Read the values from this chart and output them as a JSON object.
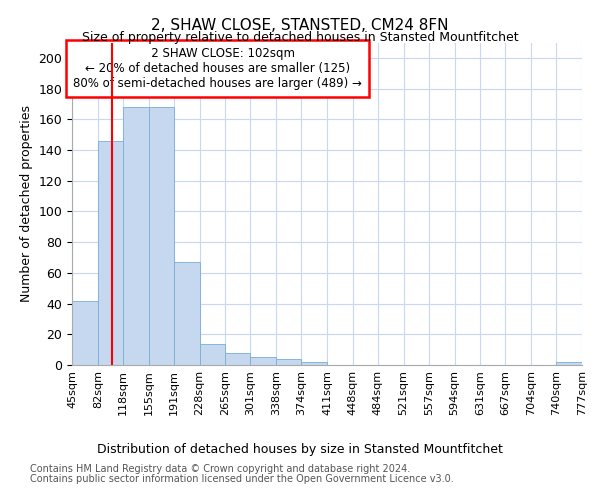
{
  "title": "2, SHAW CLOSE, STANSTED, CM24 8FN",
  "subtitle": "Size of property relative to detached houses in Stansted Mountfitchet",
  "xlabel": "Distribution of detached houses by size in Stansted Mountfitchet",
  "ylabel": "Number of detached properties",
  "footnote1": "Contains HM Land Registry data © Crown copyright and database right 2024.",
  "footnote2": "Contains public sector information licensed under the Open Government Licence v3.0.",
  "annotation_line1": "2 SHAW CLOSE: 102sqm",
  "annotation_line2": "← 20% of detached houses are smaller (125)",
  "annotation_line3": "80% of semi-detached houses are larger (489) →",
  "bar_edges": [
    45,
    82,
    118,
    155,
    191,
    228,
    265,
    301,
    338,
    374,
    411,
    448,
    484,
    521,
    557,
    594,
    631,
    667,
    704,
    740,
    777
  ],
  "bar_heights": [
    42,
    146,
    168,
    168,
    67,
    14,
    8,
    5,
    4,
    2,
    0,
    0,
    0,
    0,
    0,
    0,
    0,
    0,
    0,
    2
  ],
  "bar_color": "#c5d8ef",
  "bar_edge_color": "#7aadd4",
  "red_line_x": 102,
  "ylim": [
    0,
    210
  ],
  "yticks": [
    0,
    20,
    40,
    60,
    80,
    100,
    120,
    140,
    160,
    180,
    200
  ],
  "background_color": "#ffffff",
  "grid_color": "#c8d8ee"
}
